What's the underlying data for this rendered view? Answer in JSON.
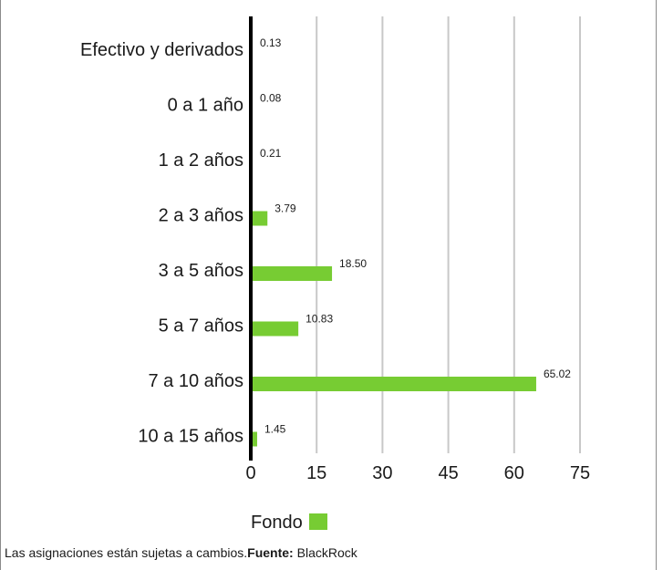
{
  "chart_data": {
    "type": "bar",
    "orientation": "horizontal",
    "categories": [
      "Efectivo y derivados",
      "0 a 1 año",
      "1 a 2 años",
      "2 a 3 años",
      "3 a 5 años",
      "5 a 7 años",
      "7 a 10 años",
      "10 a 15 años"
    ],
    "series": [
      {
        "name": "Fondo",
        "values": [
          0.13,
          0.08,
          0.21,
          3.79,
          18.5,
          10.83,
          65.02,
          1.45
        ],
        "value_labels": [
          "0.13",
          "0.08",
          "0.21",
          "3.79",
          "18.50",
          "10.83",
          "65.02",
          "1.45"
        ]
      }
    ],
    "xlim": [
      0,
      75
    ],
    "x_ticks": [
      0,
      15,
      30,
      45,
      60,
      75
    ],
    "x_tick_labels": [
      "0",
      "15",
      "30",
      "45",
      "60",
      "75"
    ],
    "grid": "vertical",
    "legend_position": "bottom"
  },
  "colors": {
    "bar": "#77cc33",
    "grid": "#c8c8c8",
    "axis": "#000000"
  },
  "legend": {
    "label": "Fondo"
  },
  "footnote": {
    "text": "Las asignaciones están sujetas a cambios.",
    "source_label": "Fuente:",
    "source_value": " BlackRock"
  }
}
